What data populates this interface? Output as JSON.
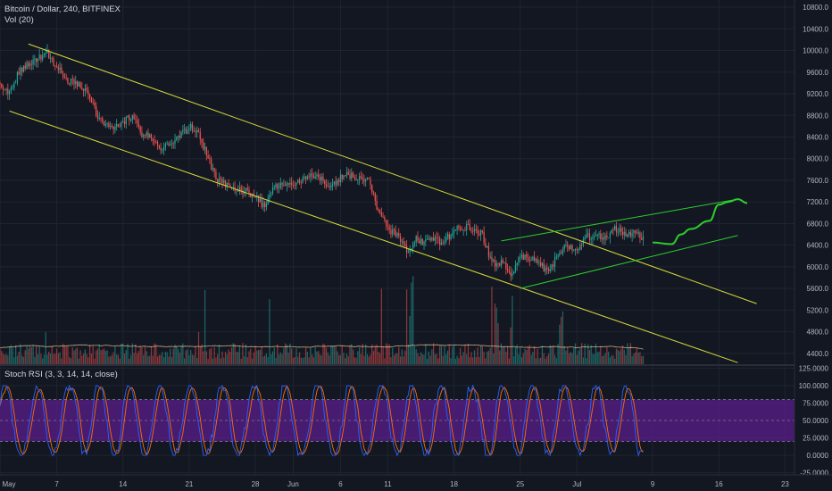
{
  "header": {
    "symbol_line": "Bitcoin / Dollar, 240, BITFINEX",
    "volume_label": "Vol (20)"
  },
  "indicator": {
    "label": "Stoch RSI (3, 3, 14, 14, close)"
  },
  "colors": {
    "background": "#131722",
    "grid": "#1f2430",
    "up": "#26a69a",
    "down": "#ef5350",
    "channel": "#d6d93a",
    "projection": "#2ecc2e",
    "stoch_k": "#2962ff",
    "stoch_d": "#ff6d00",
    "stoch_band": "#5a1e8a",
    "axis_text": "#b2b5be"
  },
  "chart_data": [
    {
      "type": "candlestick",
      "title": "Bitcoin / Dollar, 240, BITFINEX",
      "x_tick_labels": [
        "May",
        "7",
        "14",
        "21",
        "28",
        "Jun",
        "6",
        "11",
        "18",
        "25",
        "Jul",
        "9",
        "16",
        "23"
      ],
      "y_tick_labels": [
        "10800.0",
        "10400.0",
        "10000.0",
        "9600.0",
        "9200.0",
        "8800.0",
        "8400.0",
        "8000.0",
        "7600.0",
        "7200.0",
        "6800.0",
        "6400.0",
        "6000.0",
        "5600.0",
        "5200.0",
        "4800.0",
        "4400.0"
      ],
      "ylim": [
        4200,
        10900
      ],
      "xlim": [
        "2018-05-01",
        "2018-07-24"
      ],
      "grid": true,
      "price_path": [
        [
          "2018-05-01",
          9400
        ],
        [
          "2018-05-02",
          9200
        ],
        [
          "2018-05-03",
          9600
        ],
        [
          "2018-05-05",
          9850
        ],
        [
          "2018-05-06",
          9950
        ],
        [
          "2018-05-07",
          9700
        ],
        [
          "2018-05-08",
          9450
        ],
        [
          "2018-05-10",
          9300
        ],
        [
          "2018-05-11",
          8900
        ],
        [
          "2018-05-12",
          8600
        ],
        [
          "2018-05-13",
          8550
        ],
        [
          "2018-05-14",
          8700
        ],
        [
          "2018-05-15",
          8750
        ],
        [
          "2018-05-16",
          8450
        ],
        [
          "2018-05-17",
          8400
        ],
        [
          "2018-05-18",
          8200
        ],
        [
          "2018-05-19",
          8300
        ],
        [
          "2018-05-20",
          8400
        ],
        [
          "2018-05-21",
          8600
        ],
        [
          "2018-05-22",
          8450
        ],
        [
          "2018-05-23",
          8000
        ],
        [
          "2018-05-24",
          7600
        ],
        [
          "2018-05-25",
          7500
        ],
        [
          "2018-05-26",
          7450
        ],
        [
          "2018-05-27",
          7400
        ],
        [
          "2018-05-28",
          7300
        ],
        [
          "2018-05-29",
          7100
        ],
        [
          "2018-05-30",
          7500
        ],
        [
          "2018-05-31",
          7550
        ],
        [
          "2018-06-01",
          7500
        ],
        [
          "2018-06-02",
          7600
        ],
        [
          "2018-06-03",
          7700
        ],
        [
          "2018-06-04",
          7600
        ],
        [
          "2018-06-05",
          7500
        ],
        [
          "2018-06-06",
          7650
        ],
        [
          "2018-06-07",
          7700
        ],
        [
          "2018-06-08",
          7650
        ],
        [
          "2018-06-09",
          7600
        ],
        [
          "2018-06-10",
          7000
        ],
        [
          "2018-06-11",
          6700
        ],
        [
          "2018-06-12",
          6600
        ],
        [
          "2018-06-13",
          6300
        ],
        [
          "2018-06-14",
          6500
        ],
        [
          "2018-06-15",
          6450
        ],
        [
          "2018-06-16",
          6500
        ],
        [
          "2018-06-17",
          6450
        ],
        [
          "2018-06-18",
          6700
        ],
        [
          "2018-06-19",
          6750
        ],
        [
          "2018-06-20",
          6700
        ],
        [
          "2018-06-21",
          6600
        ],
        [
          "2018-06-22",
          6050
        ],
        [
          "2018-06-23",
          6100
        ],
        [
          "2018-06-24",
          5850
        ],
        [
          "2018-06-25",
          6200
        ],
        [
          "2018-06-26",
          6150
        ],
        [
          "2018-06-27",
          6050
        ],
        [
          "2018-06-28",
          5900
        ],
        [
          "2018-06-29",
          6250
        ],
        [
          "2018-06-30",
          6400
        ],
        [
          "2018-07-01",
          6350
        ],
        [
          "2018-07-02",
          6550
        ],
        [
          "2018-07-03",
          6600
        ],
        [
          "2018-07-04",
          6550
        ],
        [
          "2018-07-05",
          6700
        ],
        [
          "2018-07-06",
          6600
        ],
        [
          "2018-07-07",
          6650
        ],
        [
          "2018-07-08",
          6550
        ]
      ],
      "drawings": {
        "descending_channel_upper": [
          [
            "2018-05-04",
            10120
          ],
          [
            "2018-07-20",
            5320
          ]
        ],
        "descending_channel_lower": [
          [
            "2018-05-02",
            8880
          ],
          [
            "2018-07-18",
            4230
          ]
        ],
        "ascending_channel_upper": [
          [
            "2018-06-23",
            6480
          ],
          [
            "2018-07-18",
            7250
          ]
        ],
        "ascending_channel_lower": [
          [
            "2018-06-25",
            5600
          ],
          [
            "2018-07-18",
            6580
          ]
        ],
        "projection_path": [
          [
            "2018-07-09",
            6450
          ],
          [
            "2018-07-11",
            6420
          ],
          [
            "2018-07-12",
            6600
          ],
          [
            "2018-07-13",
            6700
          ],
          [
            "2018-07-15",
            6850
          ],
          [
            "2018-07-16",
            7150
          ],
          [
            "2018-07-17",
            7200
          ],
          [
            "2018-07-18",
            7250
          ],
          [
            "2018-07-19",
            7180
          ]
        ]
      }
    },
    {
      "type": "bar",
      "title": "Vol (20)",
      "description": "volume histogram beneath price pane, colored by candle direction"
    },
    {
      "type": "line",
      "title": "Stoch RSI (3, 3, 14, 14, close)",
      "y_tick_labels": [
        "125.0000",
        "100.0000",
        "75.0000",
        "50.0000",
        "25.0000",
        "0.0000",
        "-25.0000"
      ],
      "ylim": [
        -28,
        128
      ],
      "band": [
        20,
        80
      ],
      "series": []
    }
  ]
}
